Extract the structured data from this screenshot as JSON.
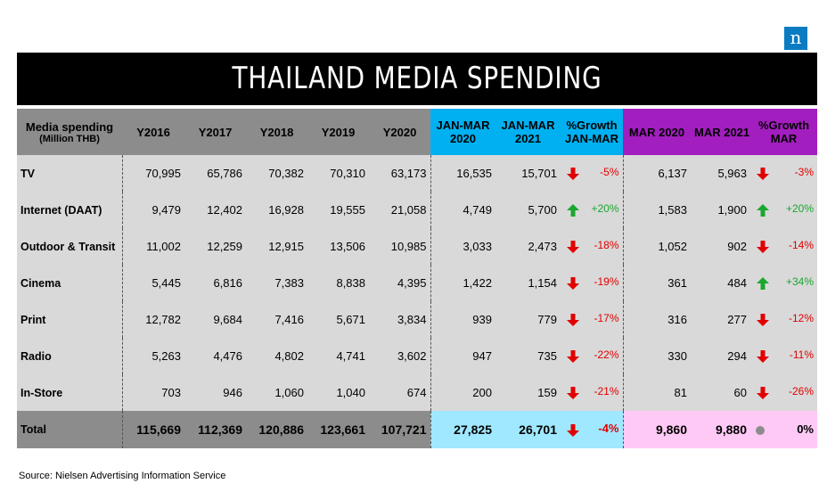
{
  "logo": {
    "letter": "n"
  },
  "title": "THAILAND MEDIA SPENDING",
  "source": "Source: Nielsen Advertising Information Service",
  "colors": {
    "neg": "#e00000",
    "pos": "#1aa72f",
    "neutral": "#8c8c8c"
  },
  "chart_data": {
    "type": "table",
    "title": "THAILAND MEDIA SPENDING",
    "header": {
      "label_line1": "Media spending",
      "label_line2": "(Million THB)",
      "years": [
        "Y2016",
        "Y2017",
        "Y2018",
        "Y2019",
        "Y2020"
      ],
      "q1": [
        "JAN-MAR 2020",
        "JAN-MAR 2021",
        "%Growth JAN-MAR"
      ],
      "mar": [
        "MAR 2020",
        "MAR 2021",
        "%Growth MAR"
      ]
    },
    "rows": [
      {
        "label": "TV",
        "years": [
          "70,995",
          "65,786",
          "70,382",
          "70,310",
          "63,173"
        ],
        "q1": [
          "16,535",
          "15,701"
        ],
        "q1_growth": "-5%",
        "q1_dir": "down",
        "mar": [
          "6,137",
          "5,963"
        ],
        "mar_growth": "-3%",
        "mar_dir": "down"
      },
      {
        "label": "Internet (DAAT)",
        "years": [
          "9,479",
          "12,402",
          "16,928",
          "19,555",
          "21,058"
        ],
        "q1": [
          "4,749",
          "5,700"
        ],
        "q1_growth": "+20%",
        "q1_dir": "up",
        "mar": [
          "1,583",
          "1,900"
        ],
        "mar_growth": "+20%",
        "mar_dir": "up"
      },
      {
        "label": "Outdoor & Transit",
        "years": [
          "11,002",
          "12,259",
          "12,915",
          "13,506",
          "10,985"
        ],
        "q1": [
          "3,033",
          "2,473"
        ],
        "q1_growth": "-18%",
        "q1_dir": "down",
        "mar": [
          "1,052",
          "902"
        ],
        "mar_growth": "-14%",
        "mar_dir": "down"
      },
      {
        "label": "Cinema",
        "years": [
          "5,445",
          "6,816",
          "7,383",
          "8,838",
          "4,395"
        ],
        "q1": [
          "1,422",
          "1,154"
        ],
        "q1_growth": "-19%",
        "q1_dir": "down",
        "mar": [
          "361",
          "484"
        ],
        "mar_growth": "+34%",
        "mar_dir": "up"
      },
      {
        "label": "Print",
        "years": [
          "12,782",
          "9,684",
          "7,416",
          "5,671",
          "3,834"
        ],
        "q1": [
          "939",
          "779"
        ],
        "q1_growth": "-17%",
        "q1_dir": "down",
        "mar": [
          "316",
          "277"
        ],
        "mar_growth": "-12%",
        "mar_dir": "down"
      },
      {
        "label": "Radio",
        "years": [
          "5,263",
          "4,476",
          "4,802",
          "4,741",
          "3,602"
        ],
        "q1": [
          "947",
          "735"
        ],
        "q1_growth": "-22%",
        "q1_dir": "down",
        "mar": [
          "330",
          "294"
        ],
        "mar_growth": "-11%",
        "mar_dir": "down"
      },
      {
        "label": "In-Store",
        "years": [
          "703",
          "946",
          "1,060",
          "1,040",
          "674"
        ],
        "q1": [
          "200",
          "159"
        ],
        "q1_growth": "-21%",
        "q1_dir": "down",
        "mar": [
          "81",
          "60"
        ],
        "mar_growth": "-26%",
        "mar_dir": "down"
      }
    ],
    "total": {
      "label": "Total",
      "years": [
        "115,669",
        "112,369",
        "120,886",
        "123,661",
        "107,721"
      ],
      "q1": [
        "27,825",
        "26,701"
      ],
      "q1_growth": "-4%",
      "q1_dir": "down",
      "mar": [
        "9,860",
        "9,880"
      ],
      "mar_growth": "0%",
      "mar_dir": "flat"
    }
  }
}
